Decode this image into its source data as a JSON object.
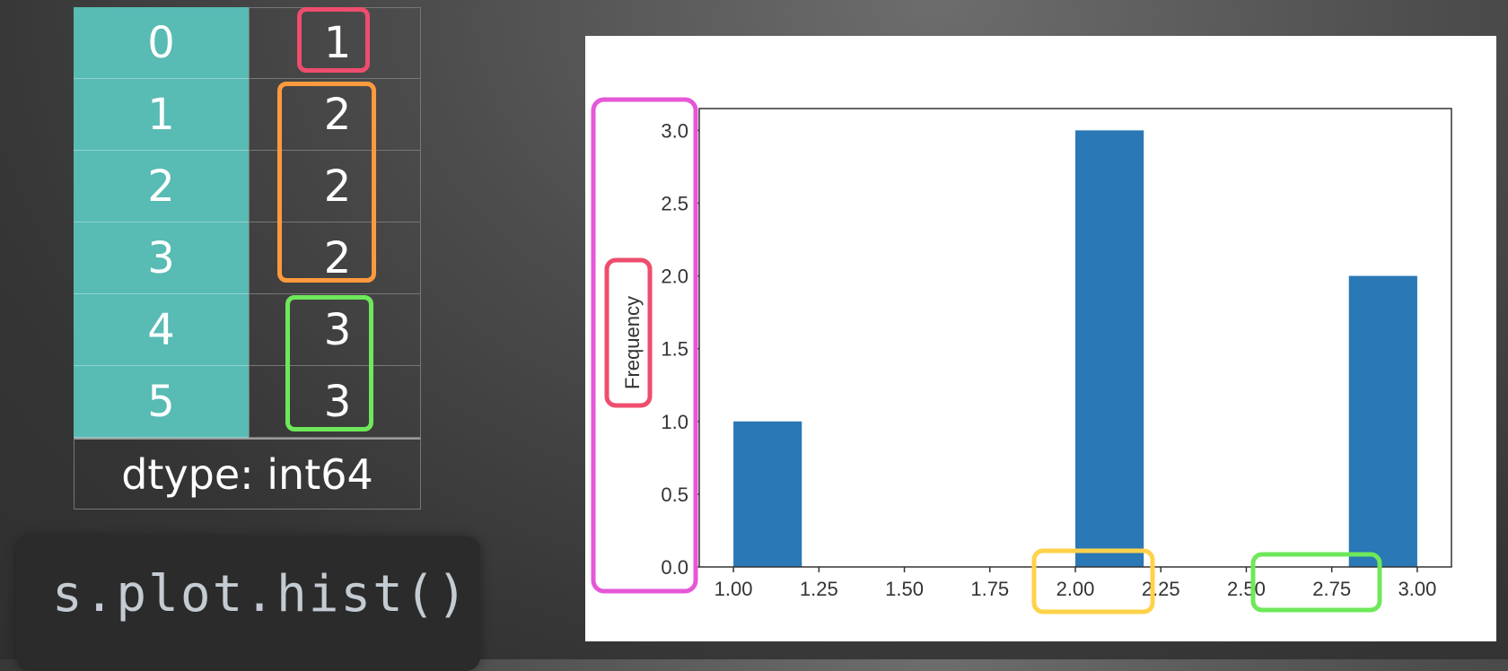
{
  "series": {
    "rows": [
      {
        "index": "0",
        "value": "1"
      },
      {
        "index": "1",
        "value": "2"
      },
      {
        "index": "2",
        "value": "2"
      },
      {
        "index": "3",
        "value": "2"
      },
      {
        "index": "4",
        "value": "3"
      },
      {
        "index": "5",
        "value": "3"
      }
    ],
    "dtype": "dtype: int64"
  },
  "code": "s.plot.hist()",
  "highlight_colors": {
    "value_1": "#ee4d6e",
    "value_2": "#ff9a3c",
    "value_3": "#6ee85a",
    "y_axis": "#e657d8",
    "ylabel": "#ee4d6e",
    "x_range_2": "#ffd24a",
    "x_range_3": "#6ee85a"
  },
  "chart_data": {
    "type": "bar",
    "title": "",
    "xlabel": "",
    "ylabel": "Frequency",
    "bin_edges": [
      1.0,
      1.2,
      1.4,
      1.6,
      1.8,
      2.0,
      2.2,
      2.4,
      2.6,
      2.8,
      3.0
    ],
    "values": [
      1,
      0,
      0,
      0,
      0,
      3,
      0,
      0,
      0,
      2
    ],
    "xlim": [
      0.9,
      3.1
    ],
    "ylim": [
      0,
      3.15
    ],
    "xticks": [
      "1.00",
      "1.25",
      "1.50",
      "1.75",
      "2.00",
      "2.25",
      "2.50",
      "2.75",
      "3.00"
    ],
    "xtick_values": [
      1.0,
      1.25,
      1.5,
      1.75,
      2.0,
      2.25,
      2.5,
      2.75,
      3.0
    ],
    "yticks": [
      "0.0",
      "0.5",
      "1.0",
      "1.5",
      "2.0",
      "2.5",
      "3.0"
    ],
    "ytick_values": [
      0,
      0.5,
      1.0,
      1.5,
      2.0,
      2.5,
      3.0
    ],
    "bar_color": "#2a78b5",
    "grid": false,
    "annotation_lines": [
      {
        "y": 3.0,
        "x_end": 2.0,
        "colors": [
          "#ff7a45",
          "#ee4d6e"
        ]
      },
      {
        "y": 2.0,
        "x_end": 2.8,
        "colors": [
          "#66ee55",
          "#e6ee4a"
        ]
      }
    ]
  }
}
